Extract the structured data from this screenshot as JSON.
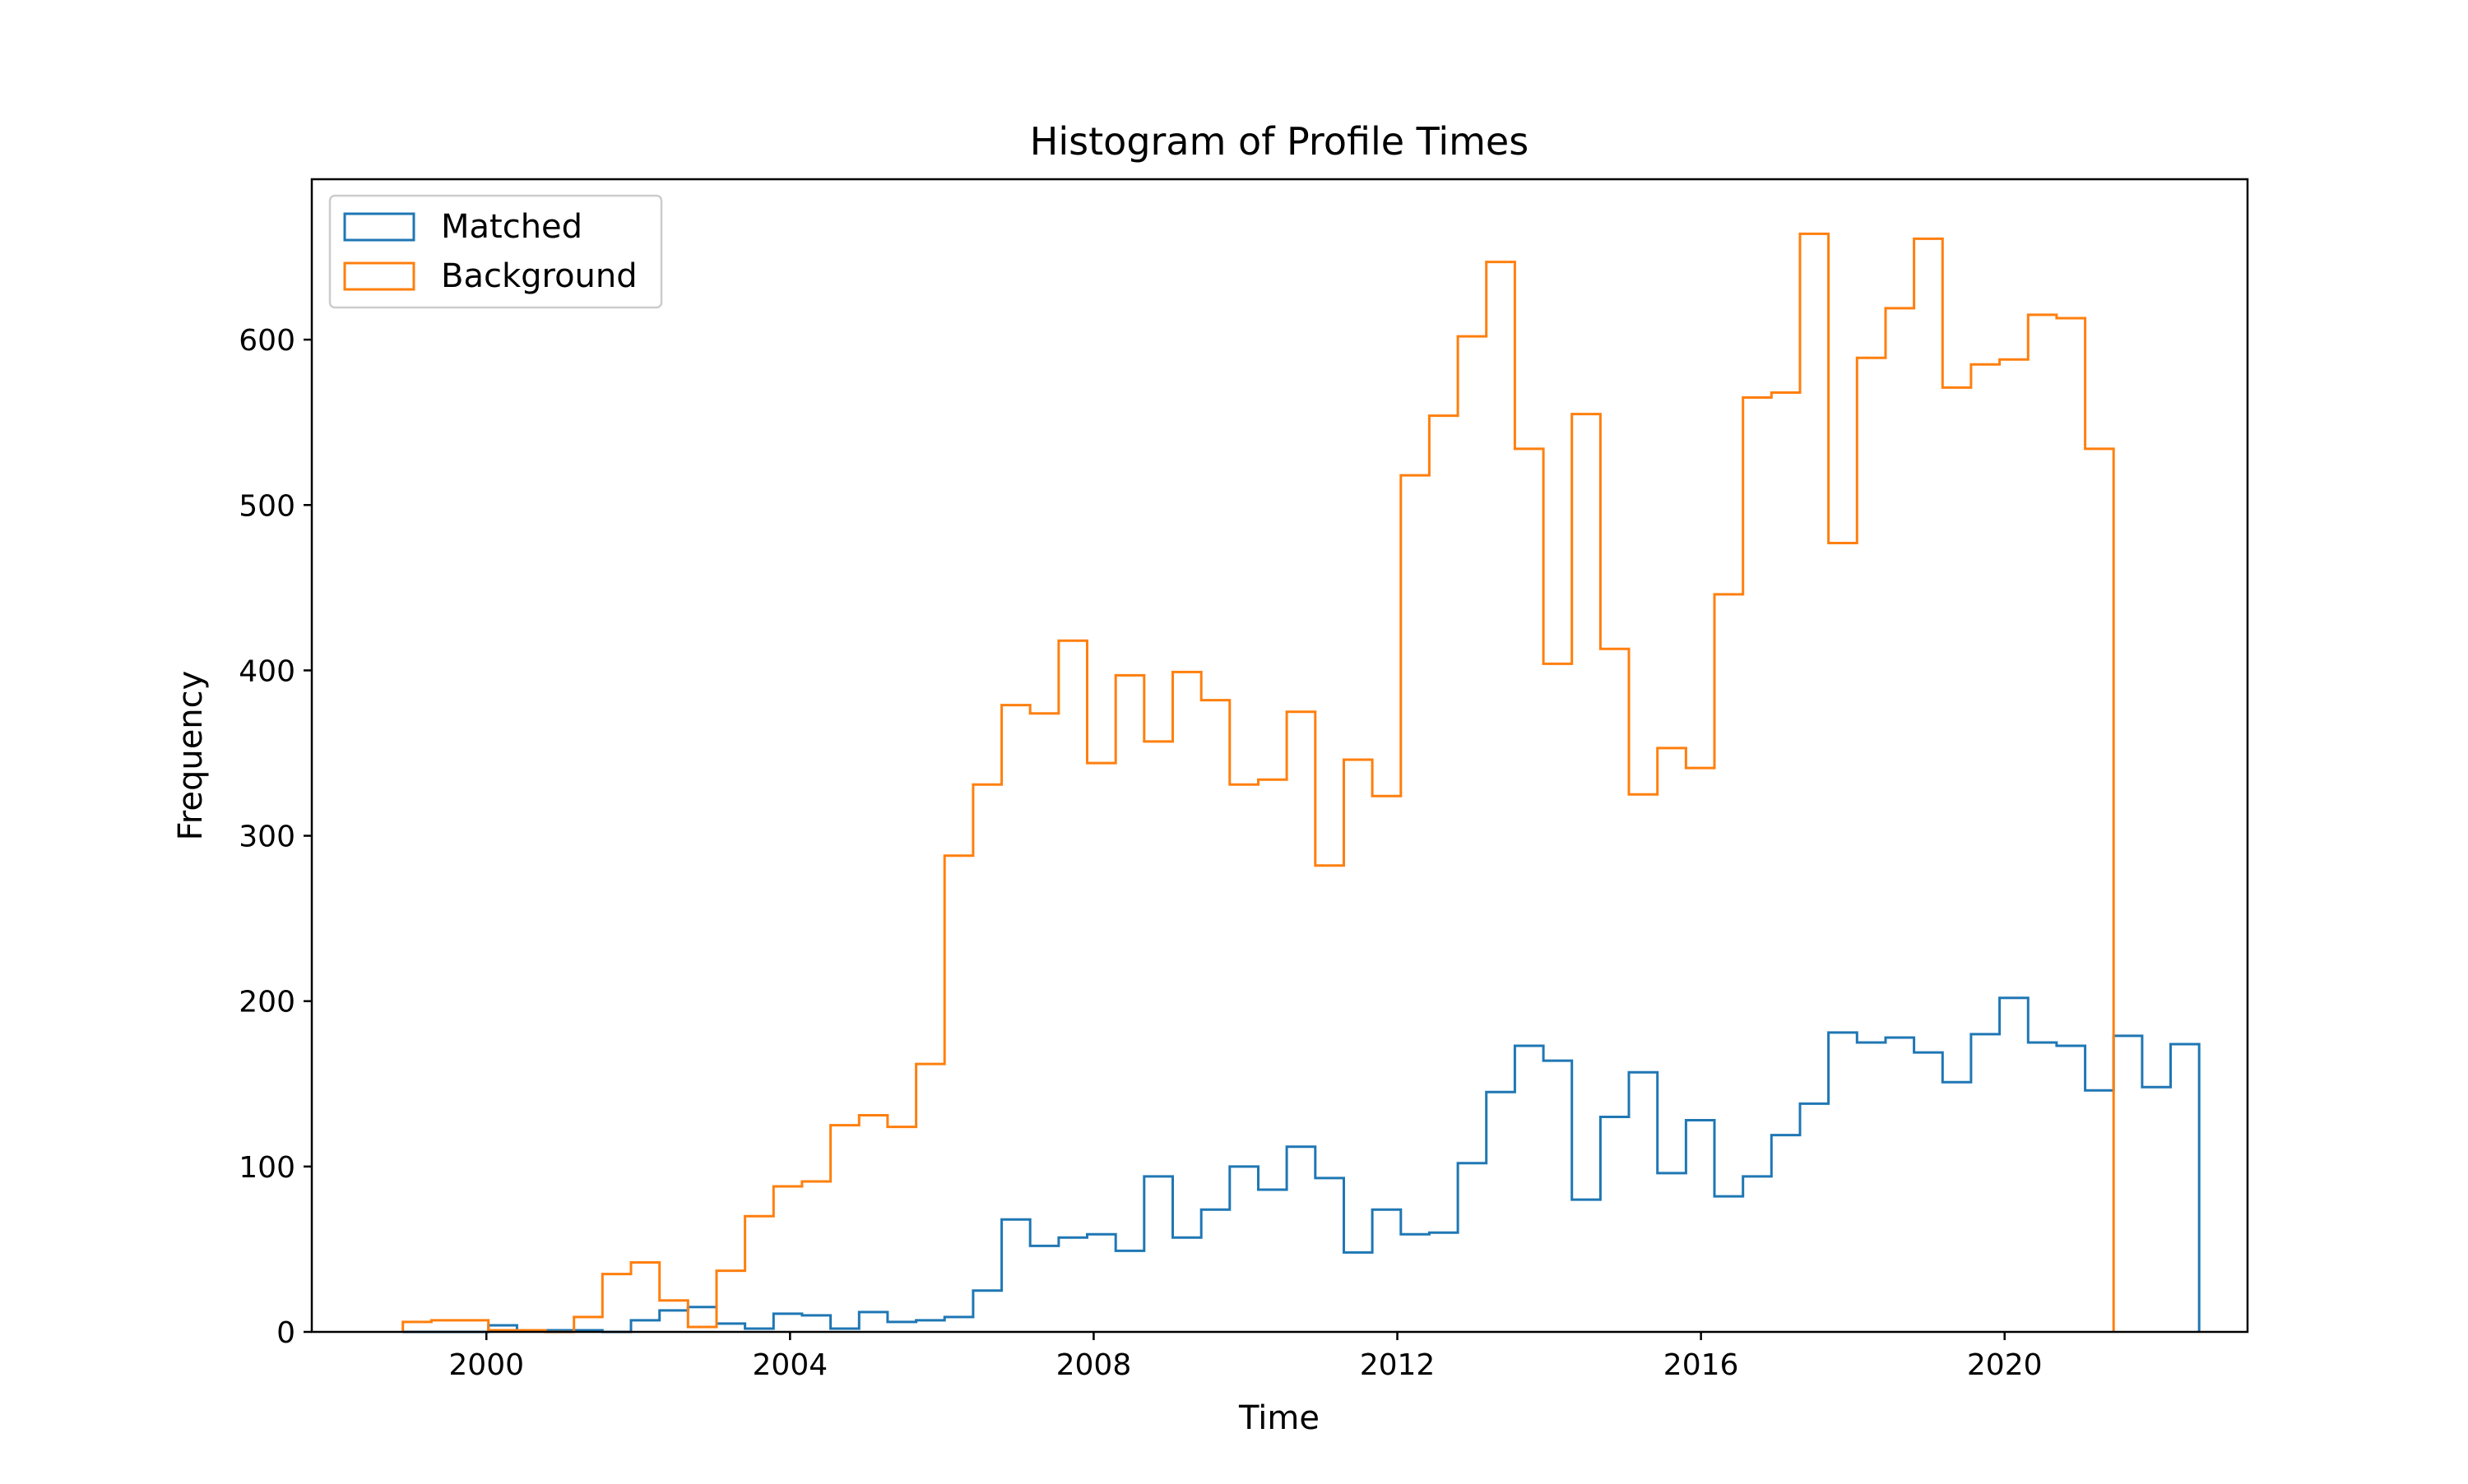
{
  "chart_data": {
    "type": "histogram",
    "title": "Histogram of Profile Times",
    "xlabel": "Time",
    "ylabel": "Frequency",
    "xlim": [
      1997.7,
      2023.2
    ],
    "ylim": [
      0,
      697
    ],
    "xticks": [
      2000,
      2004,
      2008,
      2012,
      2016,
      2020
    ],
    "xtick_labels": [
      "2000",
      "2004",
      "2008",
      "2012",
      "2016",
      "2020"
    ],
    "yticks": [
      0,
      100,
      200,
      300,
      400,
      500,
      600
    ],
    "ytick_labels": [
      "0",
      "100",
      "200",
      "300",
      "400",
      "500",
      "600"
    ],
    "grid": false,
    "legend_position": "upper-left",
    "bin_start": 1998.9,
    "bin_width": 0.3756,
    "series": [
      {
        "name": "Matched",
        "color": "#1f77b4",
        "histtype": "step",
        "values": [
          0,
          0,
          0,
          4,
          1,
          1,
          1,
          0,
          7,
          13,
          15,
          5,
          2,
          11,
          10,
          2,
          12,
          6,
          7,
          9,
          25,
          68,
          52,
          57,
          59,
          49,
          94,
          57,
          74,
          100,
          86,
          112,
          93,
          48,
          74,
          59,
          60,
          102,
          145,
          173,
          164,
          80,
          130,
          157,
          96,
          128,
          82,
          94,
          119,
          138,
          181,
          175,
          178,
          169,
          151,
          180,
          202,
          175,
          173,
          146,
          179,
          148,
          174
        ]
      },
      {
        "name": "Background",
        "color": "#ff7f0e",
        "histtype": "step",
        "values": [
          6,
          7,
          7,
          1,
          1,
          0,
          9,
          35,
          42,
          19,
          3,
          37,
          70,
          88,
          91,
          125,
          131,
          124,
          162,
          288,
          331,
          379,
          374,
          418,
          344,
          397,
          357,
          399,
          382,
          331,
          334,
          375,
          282,
          346,
          324,
          518,
          554,
          602,
          647,
          534,
          404,
          555,
          413,
          325,
          353,
          341,
          446,
          565,
          568,
          664,
          477,
          589,
          619,
          661,
          571,
          585,
          588,
          615,
          613,
          534
        ]
      }
    ]
  }
}
